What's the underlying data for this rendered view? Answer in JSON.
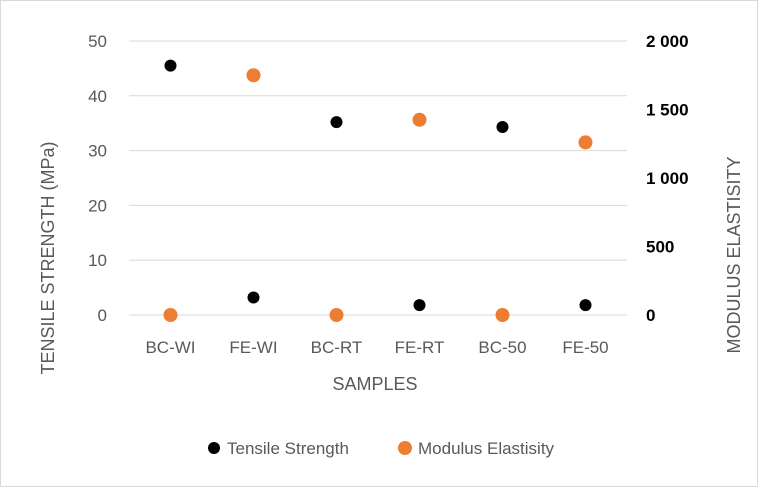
{
  "chart_data": {
    "type": "scatter",
    "categories": [
      "BC-WI",
      "FE-WI",
      "BC-RT",
      "FE-RT",
      "BC-50",
      "FE-50"
    ],
    "xlabel": "SAMPLES",
    "ylabel": "TENSILE STRENGTH (MPa)",
    "y2label": "MODULUS ELASTISITY",
    "ylim": [
      0,
      50
    ],
    "y2lim": [
      0,
      2000
    ],
    "yticks": [
      "0",
      "10",
      "20",
      "30",
      "40",
      "50"
    ],
    "y2ticks": [
      "0",
      "500",
      "1 000",
      "1 500",
      "2 000"
    ],
    "grid": true,
    "legend_position": "bottom",
    "series": [
      {
        "name": "Tensile Strength",
        "axis": "left",
        "color": "#000000",
        "values": [
          45.5,
          3.2,
          35.2,
          1.8,
          34.3,
          1.8
        ]
      },
      {
        "name": "Modulus Elastisity",
        "axis": "right",
        "color": "#ED7D31",
        "values": [
          0,
          1750,
          0,
          1425,
          0,
          1260
        ]
      }
    ]
  }
}
